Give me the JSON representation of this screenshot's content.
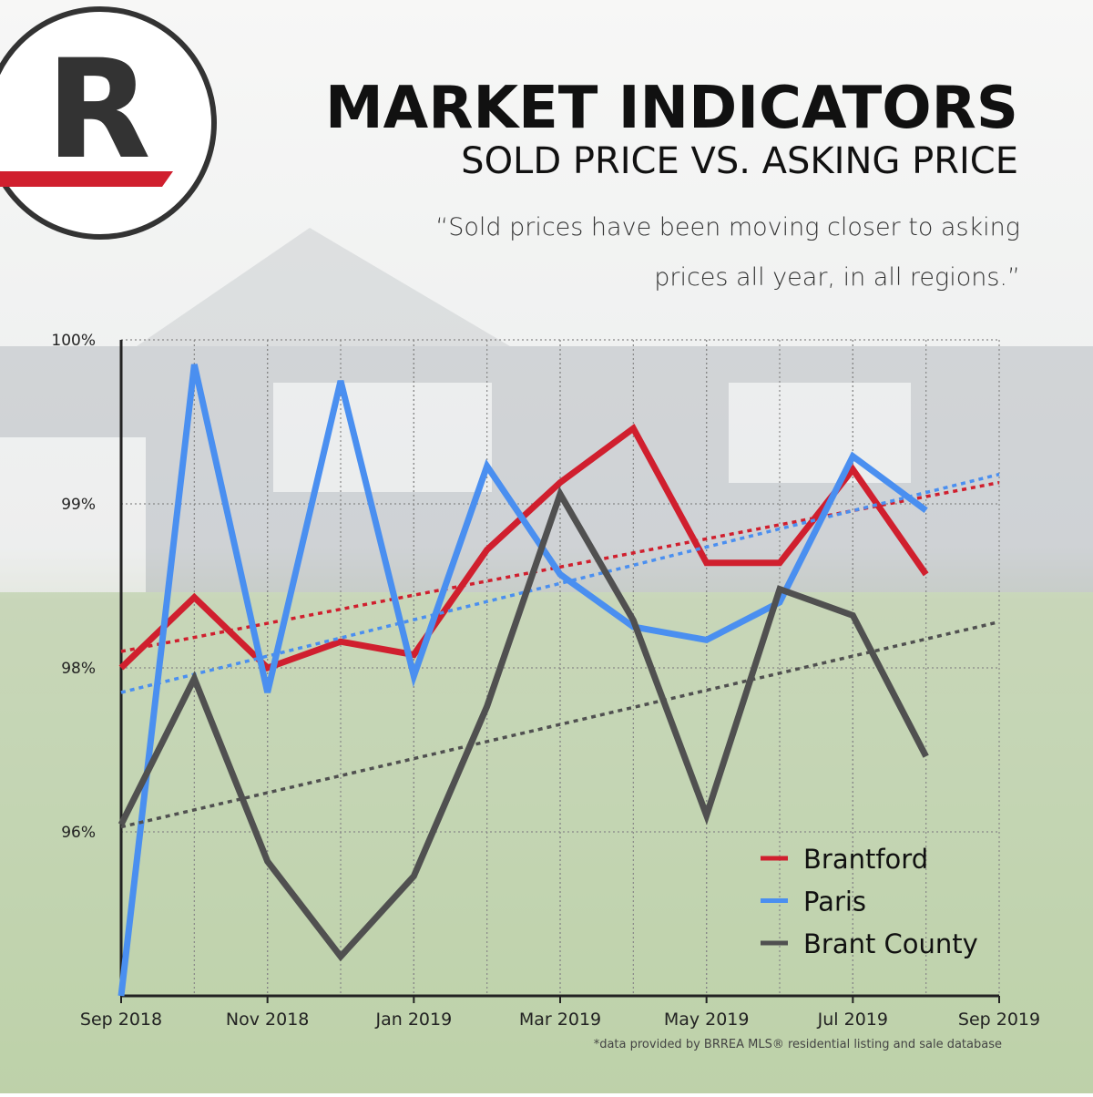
{
  "logo": "R",
  "chart_data": {
    "type": "line",
    "title": "MARKET INDICATORS",
    "subtitle": "SOLD PRICE VS. ASKING PRICE",
    "annotation": "“Sold prices have been moving closer to asking prices all year, in all regions.”",
    "footnote": "*data provided by BRREA MLS® residential listing and sale database",
    "x": [
      "2018-09",
      "2018-10",
      "2018-11",
      "2018-12",
      "2019-01",
      "2019-02",
      "2019-03",
      "2019-04",
      "2019-05",
      "2019-06",
      "2019-07",
      "2019-08"
    ],
    "xlim": [
      "2018-09",
      "2019-09"
    ],
    "xticks": [
      {
        "value": "2018-09",
        "label": "Sep 2018"
      },
      {
        "value": "2018-11",
        "label": "Nov 2018"
      },
      {
        "value": "2019-01",
        "label": "Jan 2019"
      },
      {
        "value": "2019-03",
        "label": "Mar 2019"
      },
      {
        "value": "2019-05",
        "label": "May 2019"
      },
      {
        "value": "2019-07",
        "label": "Jul 2019"
      },
      {
        "value": "2019-09",
        "label": "Sep 2019"
      }
    ],
    "ylim": [
      94,
      100
    ],
    "yscale": "tick-spaced",
    "yticks": [
      {
        "value": 100,
        "label": "100%"
      },
      {
        "value": 99,
        "label": "99%"
      },
      {
        "value": 98,
        "label": "98%"
      },
      {
        "value": 96,
        "label": "96%"
      }
    ],
    "grid": true,
    "legend": "bottom-right",
    "series": [
      {
        "name": "Brantford",
        "color": "#d01f2e",
        "values": [
          98.0,
          98.43,
          98.0,
          98.16,
          98.08,
          98.72,
          99.13,
          99.46,
          98.64,
          98.64,
          99.21,
          98.57
        ],
        "trend": [
          98.1,
          99.13
        ]
      },
      {
        "name": "Paris",
        "color": "#4a8ff0",
        "values": [
          94.0,
          99.85,
          97.7,
          99.75,
          97.9,
          99.23,
          98.57,
          98.25,
          98.17,
          98.4,
          99.29,
          98.96
        ],
        "trend": [
          97.7,
          99.18
        ]
      },
      {
        "name": "Brant County",
        "color": "#505050",
        "values": [
          96.09,
          97.87,
          95.64,
          94.48,
          95.46,
          97.53,
          99.06,
          98.29,
          96.2,
          98.48,
          98.32,
          96.92
        ],
        "trend": [
          96.06,
          98.28
        ]
      }
    ]
  }
}
